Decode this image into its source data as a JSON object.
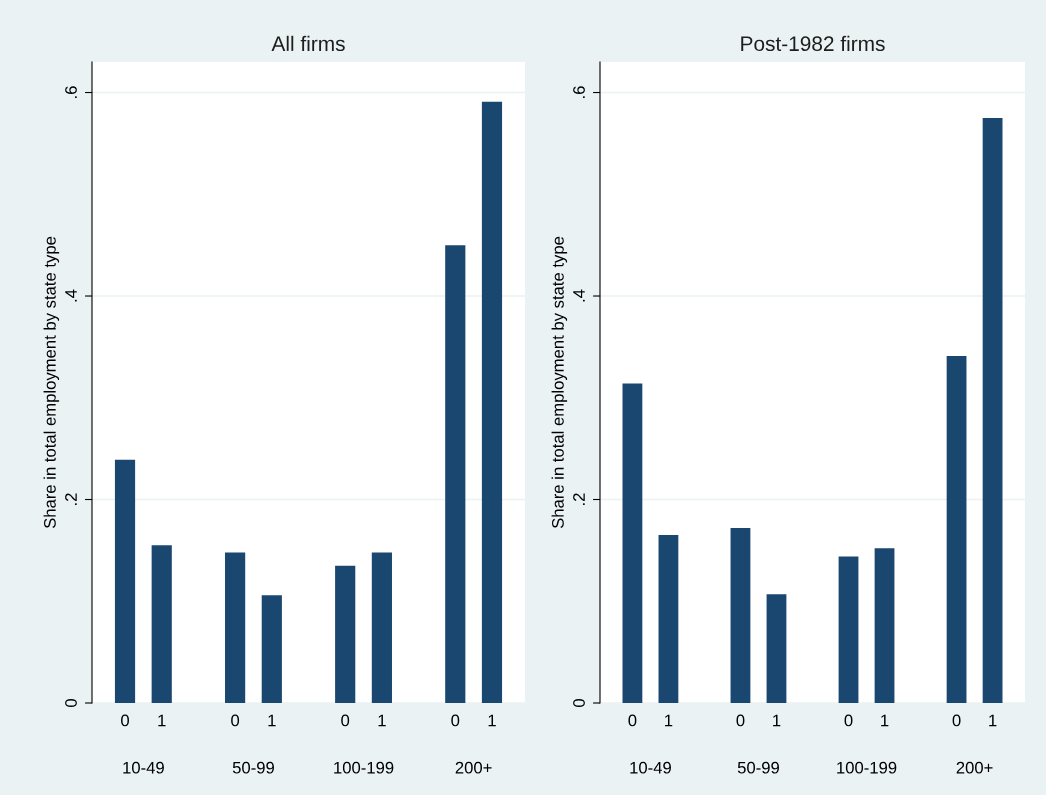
{
  "chart_data": [
    {
      "type": "bar",
      "title": "All firms",
      "ylabel": "Share in total employment by state type",
      "categories": [
        "0",
        "1",
        null,
        "0",
        "1",
        null,
        "0",
        "1",
        null,
        "0",
        "1"
      ],
      "values": [
        0.239,
        0.155,
        null,
        0.148,
        0.106,
        null,
        0.135,
        0.148,
        null,
        0.45,
        0.591
      ],
      "color": "#1a476f",
      "ylim": [
        0,
        0.63
      ],
      "yticks": [
        {
          "value": 0,
          "label": "0"
        },
        {
          "value": 0.2,
          "label": ".2"
        },
        {
          "value": 0.4,
          "label": ".4"
        },
        {
          "value": 0.6,
          "label": ".6"
        }
      ],
      "grid": "y",
      "annotations": [
        "10-49",
        "50-99",
        "100-199",
        "200+"
      ]
    },
    {
      "type": "bar",
      "title": "Post-1982 firms",
      "ylabel": "Share in total employment by state type",
      "categories": [
        "0",
        "1",
        null,
        "0",
        "1",
        null,
        "0",
        "1",
        null,
        "0",
        "1"
      ],
      "values": [
        0.314,
        0.165,
        null,
        0.172,
        0.107,
        null,
        0.144,
        0.152,
        null,
        0.341,
        0.575
      ],
      "color": "#1a476f",
      "ylim": [
        0,
        0.63
      ],
      "yticks": [
        {
          "value": 0,
          "label": "0"
        },
        {
          "value": 0.2,
          "label": ".2"
        },
        {
          "value": 0.4,
          "label": ".4"
        },
        {
          "value": 0.6,
          "label": ".6"
        }
      ],
      "grid": "y",
      "annotations": [
        "10-49",
        "50-99",
        "100-199",
        "200+"
      ]
    }
  ]
}
